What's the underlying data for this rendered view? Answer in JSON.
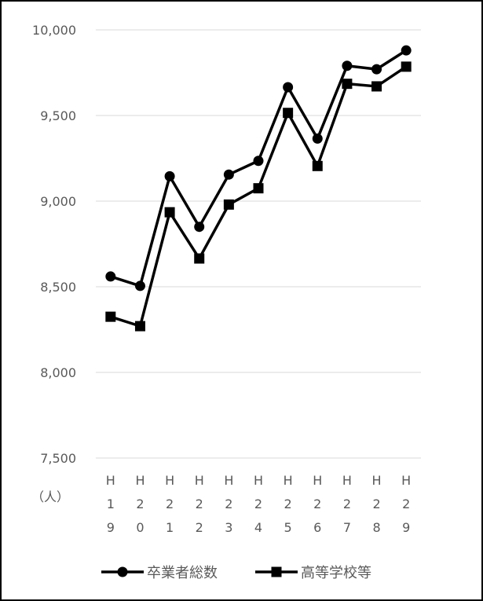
{
  "chart_data": {
    "type": "line",
    "unit": "（人）",
    "categories": [
      [
        "H",
        "1",
        "9"
      ],
      [
        "H",
        "2",
        "0"
      ],
      [
        "H",
        "2",
        "1"
      ],
      [
        "H",
        "2",
        "2"
      ],
      [
        "H",
        "2",
        "3"
      ],
      [
        "H",
        "2",
        "4"
      ],
      [
        "H",
        "2",
        "5"
      ],
      [
        "H",
        "2",
        "6"
      ],
      [
        "H",
        "2",
        "7"
      ],
      [
        "H",
        "2",
        "8"
      ],
      [
        "H",
        "2",
        "9"
      ]
    ],
    "ylim": [
      7500,
      10000
    ],
    "yticks": [
      {
        "value": 10000,
        "label": "10,000"
      },
      {
        "value": 9500,
        "label": "9,500"
      },
      {
        "value": 9000,
        "label": "9,000"
      },
      {
        "value": 8500,
        "label": "8,500"
      },
      {
        "value": 8000,
        "label": "8,000"
      },
      {
        "value": 7500,
        "label": "7,500"
      }
    ],
    "grid": true,
    "legend_position": "bottom",
    "series": [
      {
        "name": "卒業者総数",
        "marker": "circle",
        "color": "#000000",
        "values": [
          8560,
          8505,
          9145,
          8850,
          9155,
          9235,
          9665,
          9365,
          9790,
          9770,
          9880
        ]
      },
      {
        "name": "高等学校等",
        "marker": "square",
        "color": "#000000",
        "values": [
          8325,
          8270,
          8935,
          8665,
          8980,
          9075,
          9515,
          9205,
          9685,
          9670,
          9785
        ]
      }
    ]
  }
}
